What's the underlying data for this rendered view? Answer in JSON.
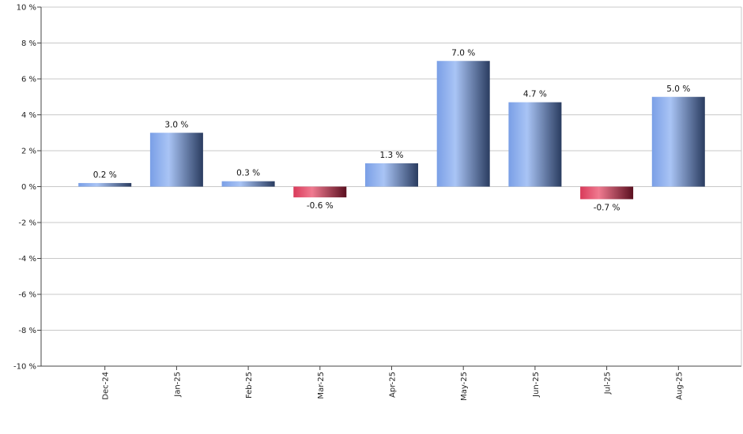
{
  "chart_data": {
    "type": "bar",
    "categories": [
      "Dec-24",
      "Jan-25",
      "Feb-25",
      "Mar-25",
      "Apr-25",
      "May-25",
      "Jun-25",
      "Jul-25",
      "Aug-25"
    ],
    "values": [
      0.2,
      3.0,
      0.3,
      -0.6,
      1.3,
      7.0,
      4.7,
      -0.7,
      5.0
    ],
    "data_labels": [
      "0.2 %",
      "3.0 %",
      "0.3 %",
      "-0.6 %",
      "1.3 %",
      "7.0 %",
      "4.7 %",
      "-0.7 %",
      "5.0 %"
    ],
    "y_ticks": [
      10,
      8,
      6,
      4,
      2,
      0,
      -2,
      -4,
      -6,
      -8,
      -10
    ],
    "y_tick_labels": [
      "10 %",
      "8 %",
      "6 %",
      "4 %",
      "2 %",
      "0 %",
      "-2 %",
      "-4 %",
      "-6 %",
      "-8 %",
      "-10 %"
    ],
    "ylim": [
      -10,
      10
    ],
    "grid": true,
    "colors": {
      "positive_light": "#a9c4f5",
      "positive_mid": "#7a9fe6",
      "positive_dark": "#2a3c60",
      "negative_light": "#f07a90",
      "negative_mid": "#d93a5a",
      "negative_dark": "#5a0f1f",
      "grid": "#c8c8c8",
      "axis": "#444444"
    }
  }
}
